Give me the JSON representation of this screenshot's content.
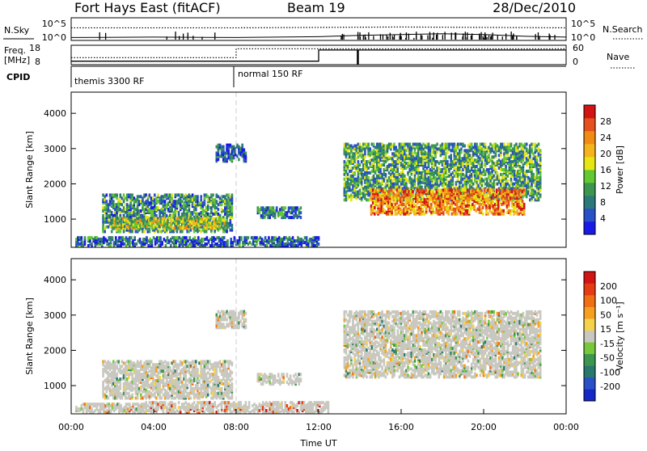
{
  "header": {
    "station": "Fort Hays East (fitACF)",
    "beam": "Beam 19",
    "date": "28/Dec/2010"
  },
  "colors": {
    "axis": "#000000",
    "guide": "#cccccc",
    "echo_gray": "#c8c8c0"
  },
  "chart_data": [
    {
      "type": "line",
      "name": "noise-panel",
      "ylabel_left": "N.Sky",
      "ylabel_right": "N.Search",
      "yticks_left": [
        "10^5",
        "10^0"
      ],
      "yticks_right": [
        "10^5",
        "10^0"
      ],
      "ylim": [
        0,
        5
      ],
      "x_range_hours": [
        0,
        24
      ],
      "series": [
        {
          "style": "dotted",
          "points": [
            [
              0,
              2.8
            ],
            [
              8,
              2.8
            ],
            [
              12,
              2.9
            ],
            [
              16,
              3.0
            ],
            [
              20,
              2.9
            ],
            [
              24,
              2.8
            ]
          ]
        },
        {
          "style": "solid",
          "points": [
            [
              0,
              0.5
            ],
            [
              4,
              0.6
            ],
            [
              8,
              0.5
            ],
            [
              12,
              0.7
            ],
            [
              14,
              1.0
            ],
            [
              18,
              1.4
            ],
            [
              20,
              1.2
            ],
            [
              22,
              0.8
            ],
            [
              24,
              0.6
            ]
          ]
        }
      ]
    },
    {
      "type": "line",
      "name": "freq-nave-panel",
      "ylabel_left": "Freq.\n[MHz]",
      "ylabel_right": "Nave",
      "yticks_left": [
        "18",
        "8"
      ],
      "yticks_right": [
        "60",
        "0"
      ],
      "ylim": [
        8,
        18
      ],
      "x_range_hours": [
        0,
        24
      ],
      "series": [
        {
          "style": "solid",
          "points": [
            [
              0,
              9.5
            ],
            [
              12.0,
              9.5
            ],
            [
              12.0,
              15.8
            ],
            [
              24,
              15.8
            ]
          ]
        },
        {
          "style": "dotted",
          "points": [
            [
              0,
              11.5
            ],
            [
              8.0,
              11.5
            ],
            [
              8.0,
              16.5
            ],
            [
              24,
              16.5
            ]
          ]
        }
      ]
    },
    {
      "type": "table",
      "name": "cpid-panel",
      "label": "CPID",
      "entries": [
        {
          "start_hour": 0.0,
          "text": "themis 3300 RF"
        },
        {
          "start_hour": 8.0,
          "text": "normal 150 RF"
        }
      ]
    },
    {
      "type": "heatmap",
      "name": "power-panel",
      "ylabel": "Slant Range [km]",
      "ylim": [
        200,
        4600
      ],
      "yticks": [
        1000,
        2000,
        3000,
        4000
      ],
      "x_range_hours": [
        0,
        24
      ],
      "colorbar": {
        "label": "Power [dB]",
        "ticks": [
          "4",
          "8",
          "12",
          "16",
          "20",
          "24",
          "28"
        ],
        "colors": [
          "#1a1ae6",
          "#2850c8",
          "#2d7878",
          "#3c9650",
          "#64c832",
          "#e6e614",
          "#f5b41e",
          "#f08c14",
          "#e6501e",
          "#d21414"
        ]
      },
      "echo_regions": [
        {
          "t0": 1.5,
          "t1": 7.8,
          "r0": 600,
          "r1": 1700,
          "mean_level": 0.3
        },
        {
          "t0": 1.8,
          "t1": 7.5,
          "r0": 700,
          "r1": 1000,
          "mean_level": 0.5
        },
        {
          "t0": 7.0,
          "t1": 8.5,
          "r0": 2600,
          "r1": 3100,
          "mean_level": 0.2
        },
        {
          "t0": 9.0,
          "t1": 11.2,
          "r0": 1000,
          "r1": 1300,
          "mean_level": 0.25
        },
        {
          "t0": 13.2,
          "t1": 22.8,
          "r0": 1500,
          "r1": 3100,
          "mean_level": 0.35
        },
        {
          "t0": 14.5,
          "t1": 22.0,
          "r0": 1100,
          "r1": 1800,
          "mean_level": 0.75
        },
        {
          "t0": 0.2,
          "t1": 12.0,
          "r0": 200,
          "r1": 450,
          "mean_level": 0.2
        }
      ]
    },
    {
      "type": "heatmap",
      "name": "velocity-panel",
      "ylabel": "Slant Range [km]",
      "xlabel": "Time UT",
      "ylim": [
        200,
        4600
      ],
      "yticks": [
        1000,
        2000,
        3000,
        4000
      ],
      "x_range_hours": [
        0,
        24
      ],
      "xticks": [
        "00:00",
        "04:00",
        "08:00",
        "12:00",
        "16:00",
        "20:00",
        "00:00"
      ],
      "colorbar": {
        "label": "Velocity [m s⁻¹]",
        "ticks": [
          "200",
          "100",
          "50",
          "15",
          "-15",
          "-50",
          "-100",
          "-200"
        ],
        "colors": [
          "#1428c8",
          "#2850c8",
          "#28786e",
          "#3c9650",
          "#78c83c",
          "#c8c8c0",
          "#f5d24b",
          "#f5a01e",
          "#f06e14",
          "#e63c14",
          "#d21414"
        ]
      },
      "echo_regions": [
        {
          "t0": 1.5,
          "t1": 7.8,
          "r0": 600,
          "r1": 1700,
          "mean_level": 0.5
        },
        {
          "t0": 7.0,
          "t1": 8.5,
          "r0": 2600,
          "r1": 3100,
          "mean_level": 0.5
        },
        {
          "t0": 9.0,
          "t1": 11.2,
          "r0": 1000,
          "r1": 1300,
          "mean_level": 0.5
        },
        {
          "t0": 13.2,
          "t1": 22.8,
          "r0": 1200,
          "r1": 3100,
          "mean_level": 0.5
        },
        {
          "t0": 0.2,
          "t1": 3.5,
          "r0": 200,
          "r1": 450,
          "mean_level": 0.6
        },
        {
          "t0": 3.5,
          "t1": 12.5,
          "r0": 200,
          "r1": 500,
          "mean_level": 0.75
        }
      ]
    }
  ]
}
